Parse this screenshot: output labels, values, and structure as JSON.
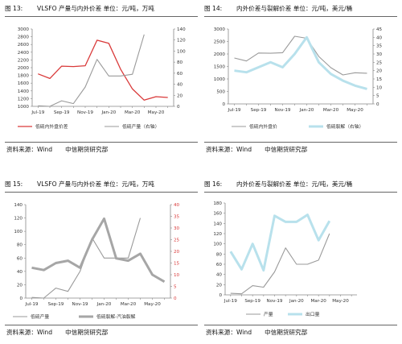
{
  "charts": [
    {
      "fig_num": "图 13:",
      "title": "VLSFO 产量与内外价差 单位：元/吨，万吨",
      "source": [
        "资料来源：Wind",
        "中信期货研究部"
      ]
    },
    {
      "fig_num": "图 14:",
      "title": "内外价差与裂解价差 单位：元/吨，美元/桶",
      "source": [
        "资料来源：Wind",
        "中信期货研究部"
      ]
    },
    {
      "fig_num": "图 15:",
      "title": "VLSFO 产量与内外价差 单位：元/吨，万吨",
      "source": [
        "资料来源：Wind",
        "中信期货研究部"
      ]
    },
    {
      "fig_num": "图 16:",
      "title": "内外价差与裂解价差 单位：元/吨，美元/桶",
      "source": [
        "资料来源：Wind",
        "中信期货研究部"
      ]
    }
  ],
  "chart_data": [
    {
      "type": "line",
      "x": [
        "Jul-19",
        "Aug-19",
        "Sep-19",
        "Oct-19",
        "Nov-19",
        "Dec-19",
        "Jan-20",
        "Feb-20",
        "Mar-20",
        "Apr-20",
        "May-20",
        "Jun-20"
      ],
      "xticks": [
        "Jul-19",
        "Sep-19",
        "Nov-19",
        "Jan-20",
        "Mar-20",
        "May-20"
      ],
      "left_axis": {
        "min": 1000,
        "max": 3000,
        "ticks": [
          1000,
          1200,
          1400,
          1600,
          1800,
          2000,
          2200,
          2400,
          2600,
          2800,
          3000
        ]
      },
      "right_axis": {
        "min": 0,
        "max": 140,
        "ticks": [
          0,
          20,
          40,
          60,
          80,
          100,
          120,
          140
        ]
      },
      "series": [
        {
          "name": "低硫内外盘价差",
          "axis": "left",
          "color": "#d93a3a",
          "width": 1.3,
          "values": [
            1840,
            1720,
            2040,
            2030,
            2050,
            2710,
            2630,
            1960,
            1450,
            1160,
            1250,
            1230
          ]
        },
        {
          "name": "低硫产量（右轴）",
          "axis": "right",
          "color": "#9a9a9a",
          "width": 1.1,
          "values": [
            1,
            0,
            10,
            5,
            35,
            85,
            55,
            55,
            58,
            130,
            null,
            null
          ]
        }
      ],
      "legend": "bottom"
    },
    {
      "type": "line",
      "x": [
        "Jul-19",
        "Aug-19",
        "Sep-19",
        "Oct-19",
        "Nov-19",
        "Dec-19",
        "Jan-20",
        "Feb-20",
        "Mar-20",
        "Apr-20",
        "May-20",
        "Jun-20"
      ],
      "xticks": [
        "Jul-19",
        "Sep-19",
        "Nov-19",
        "Jan-20",
        "Mar-20",
        "May-20"
      ],
      "left_axis": {
        "min": 0,
        "max": 3000,
        "ticks": [
          0,
          500,
          1000,
          1500,
          2000,
          2500,
          3000
        ]
      },
      "right_axis": {
        "min": 0,
        "max": 45,
        "ticks": [
          0,
          5,
          10,
          15,
          20,
          25,
          30,
          35,
          40,
          45
        ]
      },
      "series": [
        {
          "name": "低硫内外盘价",
          "axis": "left",
          "color": "#9a9a9a",
          "width": 1.1,
          "values": [
            1840,
            1720,
            2040,
            2030,
            2050,
            2710,
            2630,
            1900,
            1450,
            1160,
            1250,
            1230
          ]
        },
        {
          "name": "低硫裂解（右轴）",
          "axis": "right",
          "color": "#b8e1ec",
          "width": 3,
          "values": [
            20,
            19,
            22,
            25,
            22,
            30,
            40,
            25,
            18,
            14,
            11,
            9
          ]
        }
      ],
      "legend": "bottom"
    },
    {
      "type": "line",
      "x": [
        "Jul-19",
        "Aug-19",
        "Sep-19",
        "Oct-19",
        "Nov-19",
        "Dec-19",
        "Jan-20",
        "Feb-20",
        "Mar-20",
        "Apr-20",
        "May-20",
        "Jun-20"
      ],
      "xticks": [
        "Jul-19",
        "Sep-19",
        "Nov-19",
        "Jan-20",
        "Mar-20",
        "May-20"
      ],
      "left_axis": {
        "min": 0,
        "max": 140,
        "ticks": [
          0,
          20,
          40,
          60,
          80,
          100,
          120,
          140
        ]
      },
      "right_axis": {
        "min": 0,
        "max": 40,
        "ticks": [
          0,
          5,
          10,
          15,
          20,
          25,
          30,
          35,
          40
        ]
      },
      "series": [
        {
          "name": "低硫产量",
          "axis": "left",
          "color": "#9a9a9a",
          "width": 1.1,
          "values": [
            1,
            0,
            15,
            10,
            40,
            90,
            60,
            60,
            60,
            120,
            null,
            null
          ]
        },
        {
          "name": "低硫裂解-汽油裂解",
          "axis": "right",
          "color": "#a6a6a6",
          "width": 3,
          "values": [
            13,
            12,
            15,
            16,
            13,
            25,
            34,
            17,
            16,
            19,
            10,
            7
          ]
        }
      ],
      "legend": "bottom"
    },
    {
      "type": "line",
      "x": [
        "Jul-19",
        "Aug-19",
        "Sep-19",
        "Oct-19",
        "Nov-19",
        "Dec-19",
        "Jan-20",
        "Feb-20",
        "Mar-20",
        "Apr-20",
        "May-20",
        "Jun-20"
      ],
      "xticks": [
        "Jul-19",
        "Sep-19",
        "Nov-19",
        "Jan-20",
        "Mar-20",
        "May-20"
      ],
      "left_axis": {
        "min": 0,
        "max": 180,
        "ticks": [
          0,
          20,
          40,
          60,
          80,
          100,
          120,
          140,
          160,
          180
        ]
      },
      "series": [
        {
          "name": "产量",
          "axis": "left",
          "color": "#9a9a9a",
          "width": 1.1,
          "values": [
            3,
            2,
            18,
            15,
            45,
            92,
            60,
            60,
            68,
            120,
            null,
            null
          ]
        },
        {
          "name": "出口量",
          "axis": "left",
          "color": "#b8e1ec",
          "width": 3,
          "values": [
            85,
            50,
            100,
            48,
            155,
            143,
            143,
            157,
            107,
            145,
            null,
            null
          ]
        }
      ],
      "legend": "bottom"
    }
  ]
}
